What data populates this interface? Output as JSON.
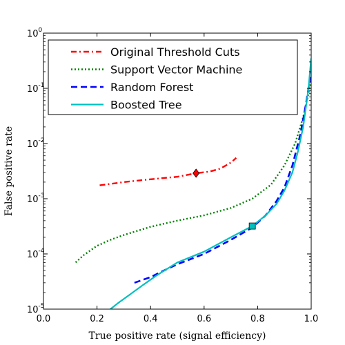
{
  "chart_data": {
    "type": "line",
    "title": "",
    "xlabel": "True positive rate (signal efficiency)",
    "ylabel": "False positive rate",
    "xlim": [
      0.0,
      1.0
    ],
    "ylim": [
      1e-05,
      1
    ],
    "yscale": "log",
    "grid": false,
    "legend_position": "top",
    "xticks": [
      {
        "value": 0.0,
        "label": "0.0"
      },
      {
        "value": 0.2,
        "label": "0.2"
      },
      {
        "value": 0.4,
        "label": "0.4"
      },
      {
        "value": 0.6,
        "label": "0.6"
      },
      {
        "value": 0.8,
        "label": "0.8"
      },
      {
        "value": 1.0,
        "label": "1.0"
      }
    ],
    "yticks": [
      {
        "value": 1e-05,
        "base": "10",
        "exp": "-5"
      },
      {
        "value": 0.0001,
        "base": "10",
        "exp": "-4"
      },
      {
        "value": 0.001,
        "base": "10",
        "exp": "-3"
      },
      {
        "value": 0.01,
        "base": "10",
        "exp": "-2"
      },
      {
        "value": 0.1,
        "base": "10",
        "exp": "-1"
      },
      {
        "value": 1,
        "base": "10",
        "exp": "0"
      }
    ],
    "series": [
      {
        "name": "Original Threshold Cuts",
        "color": "#ff0000",
        "style": "dashdot",
        "x": [
          0.21,
          0.3,
          0.4,
          0.5,
          0.57,
          0.62,
          0.66,
          0.7,
          0.72
        ],
        "y": [
          0.00175,
          0.002,
          0.00225,
          0.0025,
          0.0029,
          0.0031,
          0.0035,
          0.0045,
          0.0055
        ]
      },
      {
        "name": "Support Vector Machine",
        "color": "#008000",
        "style": "dotted",
        "x": [
          0.12,
          0.15,
          0.2,
          0.25,
          0.3,
          0.4,
          0.5,
          0.6,
          0.7,
          0.78,
          0.85,
          0.9,
          0.94,
          0.97,
          0.99,
          1.0
        ],
        "y": [
          7e-05,
          9.5e-05,
          0.00014,
          0.00018,
          0.00022,
          0.00031,
          0.0004,
          0.0005,
          0.00068,
          0.001,
          0.0018,
          0.004,
          0.01,
          0.03,
          0.08,
          0.15
        ]
      },
      {
        "name": "Random Forest",
        "color": "#0000ff",
        "style": "dashed",
        "x": [
          0.34,
          0.4,
          0.45,
          0.5,
          0.6,
          0.7,
          0.78,
          0.83,
          0.87,
          0.9,
          0.93,
          0.96,
          0.98,
          1.0
        ],
        "y": [
          3e-05,
          3.8e-05,
          5e-05,
          6.5e-05,
          0.0001,
          0.00018,
          0.0003,
          0.0005,
          0.0009,
          0.0016,
          0.004,
          0.015,
          0.05,
          0.2
        ]
      },
      {
        "name": "Boosted Tree",
        "color": "#00bfbf",
        "style": "solid",
        "x": [
          0.25,
          0.28,
          0.32,
          0.37,
          0.42,
          0.46,
          0.5,
          0.6,
          0.7,
          0.78,
          0.83,
          0.87,
          0.9,
          0.93,
          0.95,
          0.97,
          0.99,
          1.0
        ],
        "y": [
          1e-05,
          1.3e-05,
          1.8e-05,
          2.7e-05,
          4e-05,
          5.3e-05,
          7e-05,
          0.00011,
          0.0002,
          0.00032,
          0.0005,
          0.0008,
          0.0014,
          0.003,
          0.007,
          0.02,
          0.1,
          0.35
        ]
      }
    ],
    "markers": [
      {
        "series": "Original Threshold Cuts",
        "shape": "diamond",
        "x": 0.57,
        "y": 0.0029,
        "fill": "#ff0000"
      },
      {
        "series": "Boosted Tree",
        "shape": "square",
        "x": 0.78,
        "y": 0.00032,
        "fill": "#00bfbf"
      }
    ]
  }
}
